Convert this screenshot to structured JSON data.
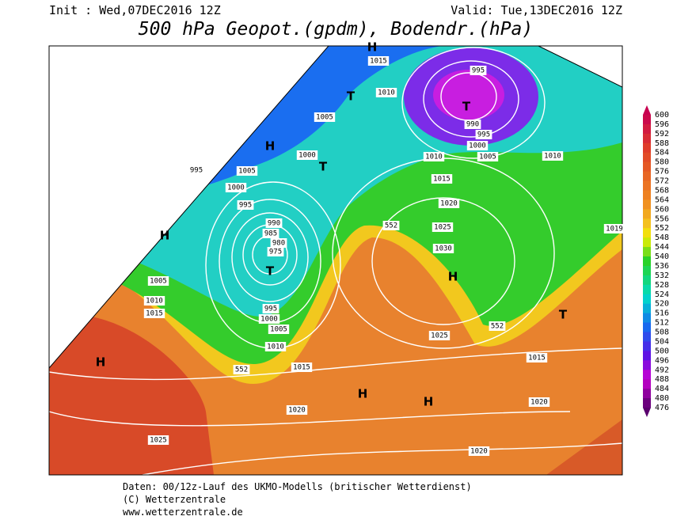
{
  "header": {
    "init": "Init : Wed,07DEC2016 12Z",
    "valid": "Valid: Tue,13DEC2016 12Z",
    "title": "500 hPa Geopot.(gpdm), Bodendr.(hPa)"
  },
  "colorbar": {
    "labels": [
      600,
      596,
      592,
      588,
      584,
      580,
      576,
      572,
      568,
      564,
      560,
      556,
      552,
      548,
      544,
      540,
      536,
      532,
      528,
      524,
      520,
      516,
      512,
      508,
      504,
      500,
      496,
      492,
      488,
      484,
      480,
      476
    ]
  },
  "map": {
    "pressure_labels": [
      1015,
      1010,
      1005,
      1000,
      1005,
      995,
      1000,
      995,
      990,
      985,
      980,
      975,
      995,
      990,
      995,
      1000,
      1005,
      1010,
      1010,
      1015,
      1020,
      1025,
      1030,
      1019,
      1005,
      1010,
      1015,
      995,
      1000,
      1005,
      1010,
      1015,
      1025,
      1015,
      1020,
      1020,
      1025,
      1020
    ],
    "geopotential_labels": [
      552,
      552,
      552
    ],
    "centers": [
      "H",
      "T",
      "H",
      "T",
      "T",
      "H",
      "T",
      "H",
      "T",
      "H",
      "H",
      "H"
    ]
  },
  "footer": {
    "lines": [
      "Daten: 00/12z-Lauf des UKMO-Modells (britischer Wetterdienst)",
      "(C) Wetterzentrale",
      "www.wetterzentrale.de"
    ]
  }
}
